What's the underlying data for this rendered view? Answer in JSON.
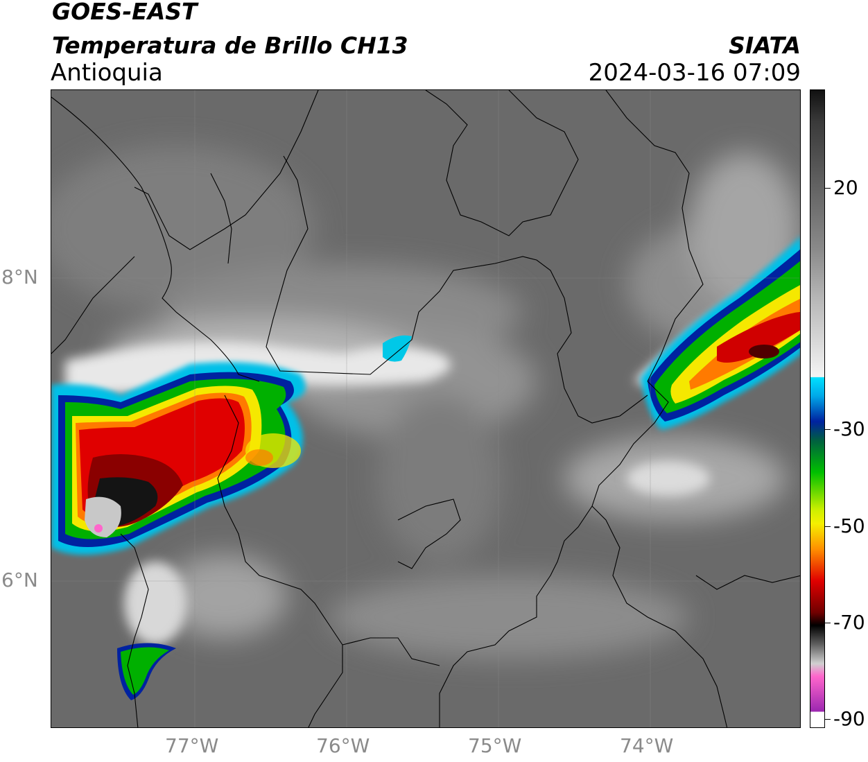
{
  "header": {
    "satellite": "GOES-EAST",
    "product": "Temperatura de Brillo CH13",
    "region": "Antioquia",
    "organization": "SIATA",
    "datetime": "2024-03-16 07:09"
  },
  "map": {
    "lat_labels": [
      "8°N",
      "6°N"
    ],
    "lon_labels": [
      "77°W",
      "76°W",
      "75°W",
      "74°W"
    ],
    "background": "cloud-top brightness temperature imagery over Antioquia, Colombia"
  },
  "colorbar": {
    "unit": "",
    "tick_labels": [
      "20",
      "-30",
      "-50",
      "-70",
      "-90"
    ],
    "tick_values": [
      20,
      -30,
      -50,
      -70,
      -90
    ],
    "range": [
      -92,
      40
    ],
    "colors": {
      "warm": "#111111",
      "gray": "#bfbfbf",
      "white": "#f4f4f4",
      "cyan": "#00d8f0",
      "blue": "#0022a0",
      "green": "#00c000",
      "yellow": "#f5f000",
      "orange": "#ff8000",
      "red": "#e00000",
      "dark_red": "#6a0000",
      "black": "#000000",
      "pink": "#ff66cc",
      "purple": "#9c27b0"
    }
  }
}
